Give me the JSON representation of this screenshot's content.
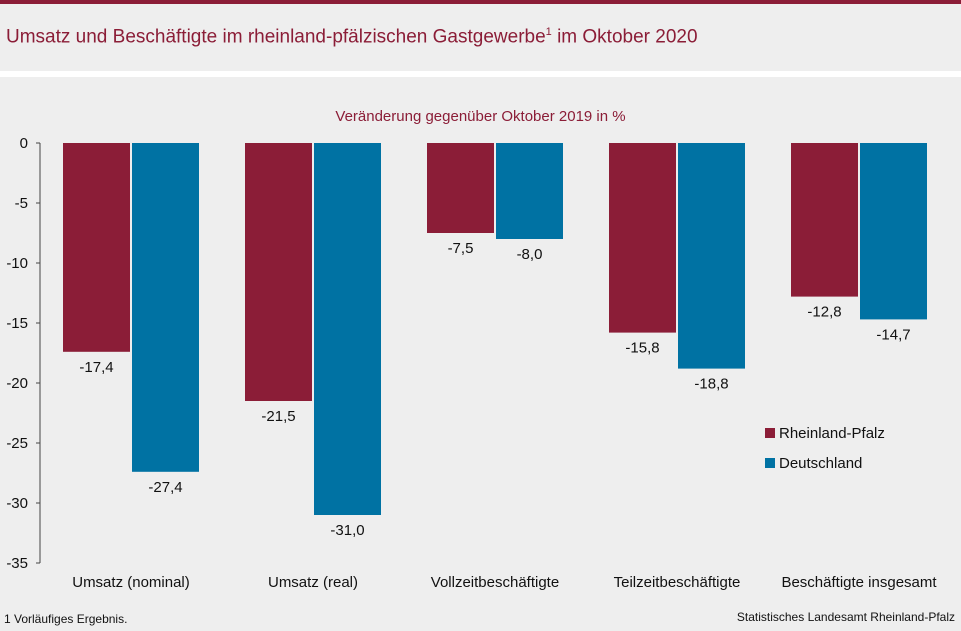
{
  "header": {
    "title": "Umsatz und Beschäftigte im rheinland-pfälzischen Gastgewerbe",
    "title_footnote_mark": "1",
    "title_suffix": " im Oktober 2020"
  },
  "footer": {
    "footnote": "1 Vorläufiges  Ergebnis.",
    "source": "Statistisches Landesamt Rheinland-Pfalz"
  },
  "colors": {
    "rheinland_pfalz": "#8b1d37",
    "deutschland": "#0072a3",
    "accent": "#8b1d37"
  },
  "chart_data": {
    "type": "bar",
    "title": "",
    "subtitle": "Veränderung  gegenüber  Oktober 2019 in %",
    "xlabel": "",
    "ylabel": "",
    "ylim": [
      -35,
      0
    ],
    "yticks": [
      "0",
      "-5",
      "-10",
      "-15",
      "-20",
      "-25",
      "-30",
      "-35"
    ],
    "grid": false,
    "legend_position": "bottom-right",
    "categories": [
      "Umsatz (nominal)",
      "Umsatz (real)",
      "Vollzeitbeschäftigte",
      "Teilzeitbeschäftigte",
      "Beschäftigte insgesamt"
    ],
    "series": [
      {
        "name": "Rheinland-Pfalz",
        "values": [
          -17.4,
          -21.5,
          -7.5,
          -15.8,
          -12.8
        ],
        "labels": [
          "-17,4",
          "-21,5",
          "-7,5",
          "-15,8",
          "-12,8"
        ]
      },
      {
        "name": "Deutschland",
        "values": [
          -27.4,
          -31.0,
          -8.0,
          -18.8,
          -14.7
        ],
        "labels": [
          "-27,4",
          "-31,0",
          "-8,0",
          "-18,8",
          "-14,7"
        ]
      }
    ]
  }
}
